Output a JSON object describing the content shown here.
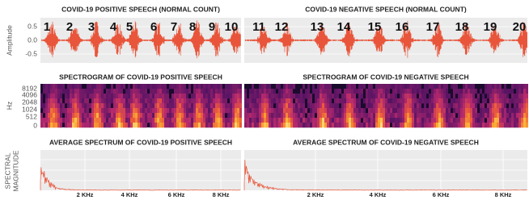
{
  "waveform": {
    "y_axis_label": "Amplitude",
    "yticks": [
      "0.5",
      "0.0",
      "-0.5"
    ],
    "panels": [
      {
        "title": "COVID-19 POSITIVE SPEECH (NORMAL COUNT)",
        "counts": [
          "1",
          "2",
          "3",
          "4",
          "5",
          "6",
          "7",
          "8",
          "9",
          "10"
        ]
      },
      {
        "title": "COVID-19 NEGATIVE SPEECH (NORMAL COUNT)",
        "counts": [
          "11",
          "12",
          "13",
          "14",
          "15",
          "16",
          "17",
          "18",
          "19",
          "20"
        ]
      }
    ]
  },
  "spectrogram": {
    "y_axis_label": "Hz",
    "yticks": [
      "8192",
      "4096",
      "2048",
      "1024",
      "512",
      "0"
    ],
    "panels": [
      {
        "title": "SPECTROGRAM OF COVID-19 POSITIVE SPEECH"
      },
      {
        "title": "SPECTROGRAM OF COVID-19 NEGATIVE SPEECH"
      }
    ]
  },
  "spectrum": {
    "y_axis_label": [
      "SPECTRAL",
      "MAGNITUDE"
    ],
    "panels": [
      {
        "title": "AVERAGE SPECTRUM OF COVID-19 POSITIVE SPEECH",
        "xticks": [
          "2 KHz",
          "4 KHz",
          "6 KHz",
          "8 KHz"
        ]
      },
      {
        "title": "AVERAGE SPECTRUM OF COVID-19 NEGATIVE SPEECH",
        "xticks": [
          "2 KHz",
          "4 KHz",
          "6 KHz",
          "8 KHz"
        ]
      }
    ]
  }
}
